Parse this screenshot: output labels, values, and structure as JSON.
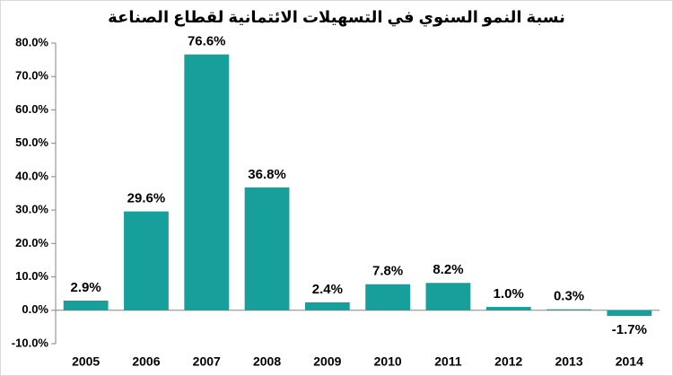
{
  "chart_data": {
    "type": "bar",
    "title": "نسبة النمو السنوي في التسهيلات الائتمانية لقطاع الصناعة",
    "categories": [
      "2005",
      "2006",
      "2007",
      "2008",
      "2009",
      "2010",
      "2011",
      "2012",
      "2013",
      "2014"
    ],
    "values": [
      2.9,
      29.6,
      76.6,
      36.8,
      2.4,
      7.8,
      8.2,
      1.0,
      0.3,
      -1.7
    ],
    "value_labels": [
      "2.9%",
      "29.6%",
      "76.6%",
      "36.8%",
      "2.4%",
      "7.8%",
      "8.2%",
      "1.0%",
      "0.3%",
      "-1.7%"
    ],
    "color": "#17a09b",
    "ylim": [
      -10,
      80
    ],
    "yticks": [
      {
        "value": -10,
        "label": "-10.0%"
      },
      {
        "value": 0,
        "label": "0.0%"
      },
      {
        "value": 10,
        "label": "10.0%"
      },
      {
        "value": 20,
        "label": "20.0%"
      },
      {
        "value": 30,
        "label": "30.0%"
      },
      {
        "value": 40,
        "label": "40.0%"
      },
      {
        "value": 50,
        "label": "50.0%"
      },
      {
        "value": 60,
        "label": "60.0%"
      },
      {
        "value": 70,
        "label": "70.0%"
      },
      {
        "value": 80,
        "label": "80.0%"
      }
    ],
    "grid": false
  }
}
